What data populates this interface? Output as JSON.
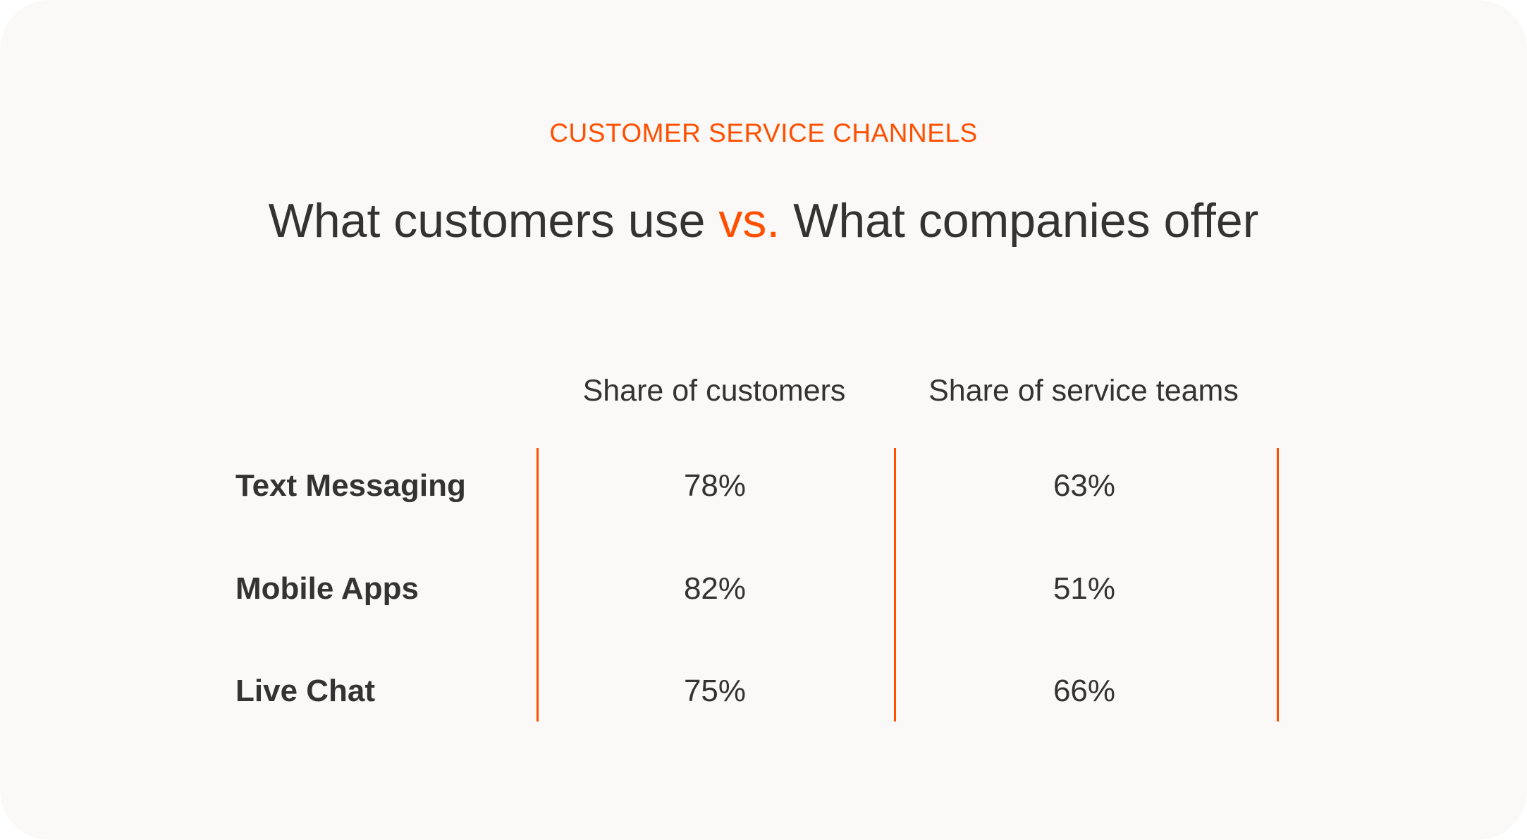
{
  "eyebrow": "CUSTOMER SERVICE CHANNELS",
  "title": {
    "part1": "What customers use",
    "accent": "vs.",
    "part2": "What companies offer"
  },
  "columns": [
    "Share of customers",
    "Share of service teams"
  ],
  "rows": [
    {
      "label": "Text Messaging",
      "customers": "78%",
      "teams": "63%"
    },
    {
      "label": "Mobile Apps",
      "customers": "82%",
      "teams": "51%"
    },
    {
      "label": "Live Chat",
      "customers": "75%",
      "teams": "66%"
    }
  ],
  "colors": {
    "accent": "#ff4f00",
    "text": "#333333",
    "background": "#faf9f7"
  }
}
